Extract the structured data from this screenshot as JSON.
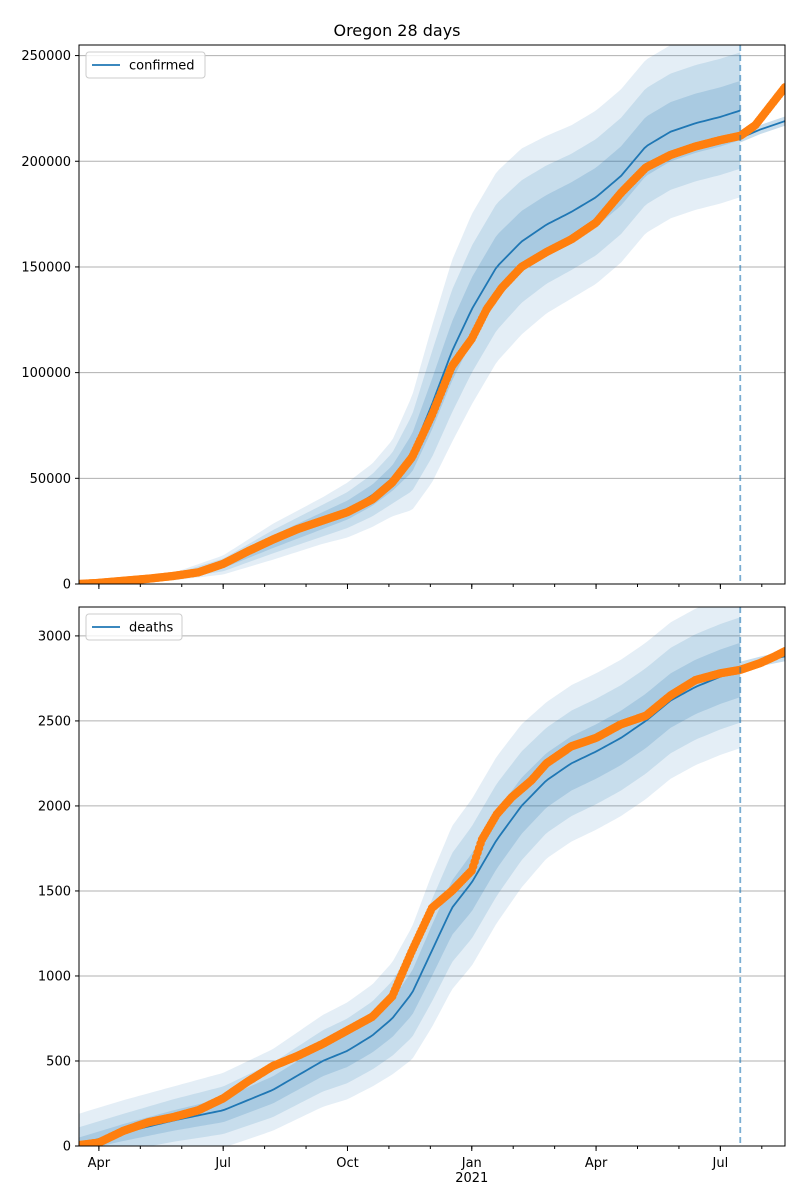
{
  "title": "Oregon 28 days",
  "chart_data": [
    {
      "type": "line",
      "name": "confirmed",
      "title": "Oregon 28 days",
      "ylim": [
        0,
        255000
      ],
      "yticks": [
        0,
        50000,
        100000,
        150000,
        200000,
        250000
      ],
      "ytick_labels": [
        "0",
        "50000",
        "100000",
        "150000",
        "200000",
        "250000"
      ],
      "legend": {
        "label": "confirmed",
        "position": "top-left"
      },
      "grid": true,
      "forecast_date": 2021.54,
      "xlim": [
        2020.21,
        2021.63
      ],
      "model": {
        "x": [
          2020.21,
          2020.3,
          2020.4,
          2020.5,
          2020.6,
          2020.7,
          2020.75,
          2020.8,
          2020.84,
          2020.88,
          2020.92,
          2020.96,
          2021.0,
          2021.05,
          2021.1,
          2021.15,
          2021.2,
          2021.25,
          2021.3,
          2021.35,
          2021.4,
          2021.45,
          2021.5,
          2021.54
        ],
        "mean": [
          0,
          1500,
          3500,
          9000,
          20000,
          30000,
          35000,
          42000,
          50000,
          62000,
          85000,
          110000,
          130000,
          150000,
          162000,
          170000,
          176000,
          183000,
          193000,
          207000,
          214000,
          218000,
          221000,
          224000
        ],
        "band_inner": [
          0,
          200,
          600,
          1500,
          3000,
          4000,
          4500,
          5000,
          6000,
          9000,
          12000,
          14000,
          15000,
          15000,
          14500,
          14000,
          14000,
          14000,
          14000,
          14000,
          14000,
          14000,
          14000,
          14000
        ],
        "band_mid": [
          0,
          400,
          1200,
          3000,
          5500,
          7500,
          8500,
          10000,
          12000,
          18000,
          25000,
          29000,
          30000,
          30000,
          29000,
          28000,
          27500,
          27500,
          27500,
          27500,
          27500,
          27500,
          27500,
          27500
        ],
        "band_outer": [
          0,
          600,
          1800,
          4500,
          8500,
          11000,
          13000,
          15000,
          18000,
          27000,
          37000,
          43000,
          45000,
          45000,
          44000,
          42000,
          41000,
          41000,
          41000,
          41000,
          41000,
          41000,
          41000,
          41000
        ]
      },
      "forecast": {
        "x": [
          2021.54,
          2021.58,
          2021.63
        ],
        "mean": [
          211000,
          215000,
          219000
        ]
      },
      "observed": {
        "x": [
          2020.21,
          2020.25,
          2020.3,
          2020.35,
          2020.4,
          2020.45,
          2020.5,
          2020.55,
          2020.6,
          2020.65,
          2020.7,
          2020.75,
          2020.8,
          2020.84,
          2020.88,
          2020.92,
          2020.96,
          2021.0,
          2021.03,
          2021.06,
          2021.1,
          2021.15,
          2021.2,
          2021.25,
          2021.3,
          2021.35,
          2021.4,
          2021.45,
          2021.5,
          2021.54,
          2021.57,
          2021.59,
          2021.61,
          2021.63
        ],
        "y": [
          0,
          500,
          1500,
          2500,
          3800,
          5500,
          9500,
          15500,
          21000,
          26000,
          30000,
          34000,
          40000,
          48000,
          60000,
          80000,
          103000,
          116000,
          130000,
          140000,
          150000,
          157000,
          163000,
          171000,
          185000,
          197000,
          203000,
          207000,
          210000,
          212000,
          217000,
          223000,
          229000,
          235000
        ]
      }
    },
    {
      "type": "line",
      "name": "deaths",
      "ylim": [
        0,
        3170
      ],
      "yticks": [
        0,
        500,
        1000,
        1500,
        2000,
        2500,
        3000
      ],
      "ytick_labels": [
        "0",
        "500",
        "1000",
        "1500",
        "2000",
        "2500",
        "3000"
      ],
      "legend": {
        "label": "deaths",
        "position": "top-left"
      },
      "grid": true,
      "forecast_date": 2021.54,
      "xlim": [
        2020.21,
        2021.63
      ],
      "xticks": [
        2020.25,
        2020.5,
        2020.75,
        2021.0,
        2021.25,
        2021.5
      ],
      "xtick_labels": [
        "Apr",
        "Jul",
        "Oct",
        "Jan",
        "Apr",
        "Jul"
      ],
      "xtick_year": {
        "at": 2021.0,
        "label": "2021"
      },
      "model": {
        "x": [
          2020.21,
          2020.3,
          2020.4,
          2020.5,
          2020.6,
          2020.7,
          2020.75,
          2020.8,
          2020.84,
          2020.88,
          2020.92,
          2020.96,
          2021.0,
          2021.05,
          2021.1,
          2021.15,
          2021.2,
          2021.25,
          2021.3,
          2021.35,
          2021.4,
          2021.45,
          2021.5,
          2021.54
        ],
        "mean": [
          10,
          80,
          150,
          210,
          330,
          500,
          560,
          650,
          750,
          900,
          1150,
          1400,
          1550,
          1800,
          2000,
          2150,
          2250,
          2320,
          2400,
          2500,
          2620,
          2700,
          2760,
          2800
        ],
        "band_inner": [
          40,
          50,
          60,
          70,
          80,
          90,
          95,
          100,
          110,
          130,
          150,
          160,
          170,
          170,
          165,
          160,
          160,
          160,
          160,
          160,
          160,
          160,
          160,
          160
        ],
        "band_mid": [
          100,
          110,
          125,
          140,
          160,
          180,
          190,
          200,
          220,
          260,
          300,
          320,
          330,
          330,
          320,
          310,
          310,
          310,
          310,
          310,
          310,
          310,
          310,
          310
        ],
        "band_outer": [
          180,
          190,
          200,
          220,
          240,
          270,
          285,
          300,
          330,
          390,
          450,
          480,
          490,
          490,
          480,
          460,
          460,
          460,
          460,
          460,
          460,
          460,
          460,
          460
        ]
      },
      "forecast": {
        "x": [
          2021.54,
          2021.58,
          2021.63
        ],
        "mean": [
          2820,
          2850,
          2880
        ]
      },
      "observed": {
        "x": [
          2020.21,
          2020.25,
          2020.3,
          2020.35,
          2020.4,
          2020.45,
          2020.5,
          2020.55,
          2020.6,
          2020.65,
          2020.7,
          2020.75,
          2020.8,
          2020.84,
          2020.88,
          2020.92,
          2020.96,
          2021.0,
          2021.02,
          2021.05,
          2021.08,
          2021.12,
          2021.15,
          2021.2,
          2021.25,
          2021.3,
          2021.35,
          2021.4,
          2021.45,
          2021.5,
          2021.54,
          2021.58,
          2021.61,
          2021.63
        ],
        "y": [
          5,
          20,
          90,
          140,
          170,
          210,
          280,
          380,
          470,
          530,
          600,
          680,
          760,
          880,
          1150,
          1400,
          1500,
          1620,
          1800,
          1950,
          2050,
          2150,
          2250,
          2350,
          2400,
          2480,
          2530,
          2650,
          2740,
          2780,
          2800,
          2840,
          2880,
          2910
        ]
      }
    }
  ]
}
